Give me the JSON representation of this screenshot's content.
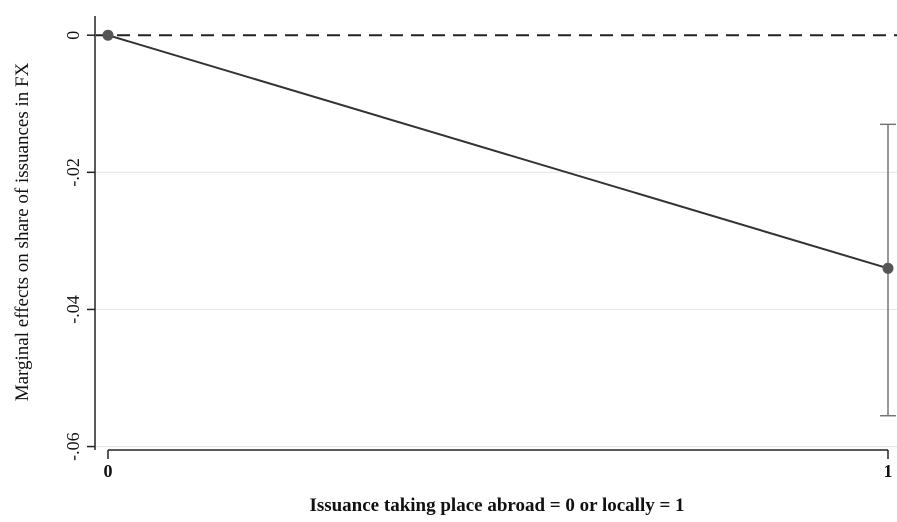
{
  "chart_data": {
    "type": "line",
    "title": "",
    "xlabel": "Issuance taking place abroad = 0 or locally = 1",
    "ylabel": "Marginal effects on share of issuances in FX",
    "x": [
      0,
      1
    ],
    "series": [
      {
        "values": [
          0,
          -0.034
        ],
        "ci_lower": [
          0,
          -0.0555
        ],
        "ci_upper": [
          0,
          -0.013
        ]
      }
    ],
    "xticks": [
      0,
      1
    ],
    "xtick_labels": [
      "0",
      "1"
    ],
    "yticks": [
      0,
      -0.02,
      -0.04,
      -0.06
    ],
    "ytick_labels": [
      "0",
      "-.02",
      "-.04",
      "-.06"
    ],
    "xlim": [
      0,
      1
    ],
    "ylim": [
      -0.0605,
      0.0028
    ],
    "reference_line": {
      "y": 0,
      "style": "dashed"
    },
    "grid": true,
    "legend": "none",
    "colors": {
      "line": "#333333",
      "marker": "#555555",
      "ci": "#777777",
      "grid": "#e6e6e6",
      "axis": "#222222"
    }
  }
}
